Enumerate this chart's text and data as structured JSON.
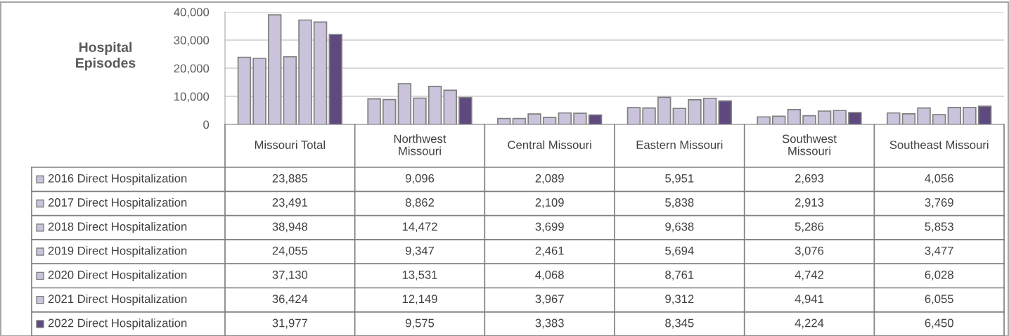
{
  "chart_data": {
    "type": "bar",
    "ylabel": "Hospital\nEpisodes",
    "categories": [
      "Missouri Total",
      "Northwest\nMissouri",
      "Central Missouri",
      "Eastern Missouri",
      "Southwest\nMissouri",
      "Southeast Missouri"
    ],
    "series": [
      {
        "name": "2016 Direct Hospitalization",
        "color": "#cbc3dc",
        "values": [
          23885,
          9096,
          2089,
          5951,
          2693,
          4056
        ],
        "value_labels": [
          "23,885",
          "9,096",
          "2,089",
          "5,951",
          "2,693",
          "4,056"
        ]
      },
      {
        "name": "2017 Direct Hospitalization",
        "color": "#cbc3dc",
        "values": [
          23491,
          8862,
          2109,
          5838,
          2913,
          3769
        ],
        "value_labels": [
          "23,491",
          "8,862",
          "2,109",
          "5,838",
          "2,913",
          "3,769"
        ]
      },
      {
        "name": "2018 Direct Hospitalization",
        "color": "#cbc3dc",
        "values": [
          38948,
          14472,
          3699,
          9638,
          5286,
          5853
        ],
        "value_labels": [
          "38,948",
          "14,472",
          "3,699",
          "9,638",
          "5,286",
          "5,853"
        ]
      },
      {
        "name": "2019 Direct Hospitalization",
        "color": "#cbc3dc",
        "values": [
          24055,
          9347,
          2461,
          5694,
          3076,
          3477
        ],
        "value_labels": [
          "24,055",
          "9,347",
          "2,461",
          "5,694",
          "3,076",
          "3,477"
        ]
      },
      {
        "name": "2020 Direct Hospitalization",
        "color": "#cbc3dc",
        "values": [
          37130,
          13531,
          4068,
          8761,
          4742,
          6028
        ],
        "value_labels": [
          "37,130",
          "13,531",
          "4,068",
          "8,761",
          "4,742",
          "6,028"
        ]
      },
      {
        "name": "2021 Direct Hospitalization",
        "color": "#cbc3dc",
        "values": [
          36424,
          12149,
          3967,
          9312,
          4941,
          6055
        ],
        "value_labels": [
          "36,424",
          "12,149",
          "3,967",
          "9,312",
          "4,941",
          "6,055"
        ]
      },
      {
        "name": "2022 Direct Hospitalization",
        "color": "#5f4a7f",
        "values": [
          31977,
          9575,
          3383,
          8345,
          4224,
          6450
        ],
        "value_labels": [
          "31,977",
          "9,575",
          "3,383",
          "8,345",
          "4,224",
          "6,450"
        ]
      }
    ],
    "ylim": [
      0,
      40000
    ],
    "yticks": [
      {
        "value": 0,
        "label": "0"
      },
      {
        "value": 10000,
        "label": "10,000"
      },
      {
        "value": 20000,
        "label": "20,000"
      },
      {
        "value": 30000,
        "label": "30,000"
      },
      {
        "value": 40000,
        "label": "40,000"
      }
    ],
    "grid": "y",
    "legend": "bottom"
  }
}
